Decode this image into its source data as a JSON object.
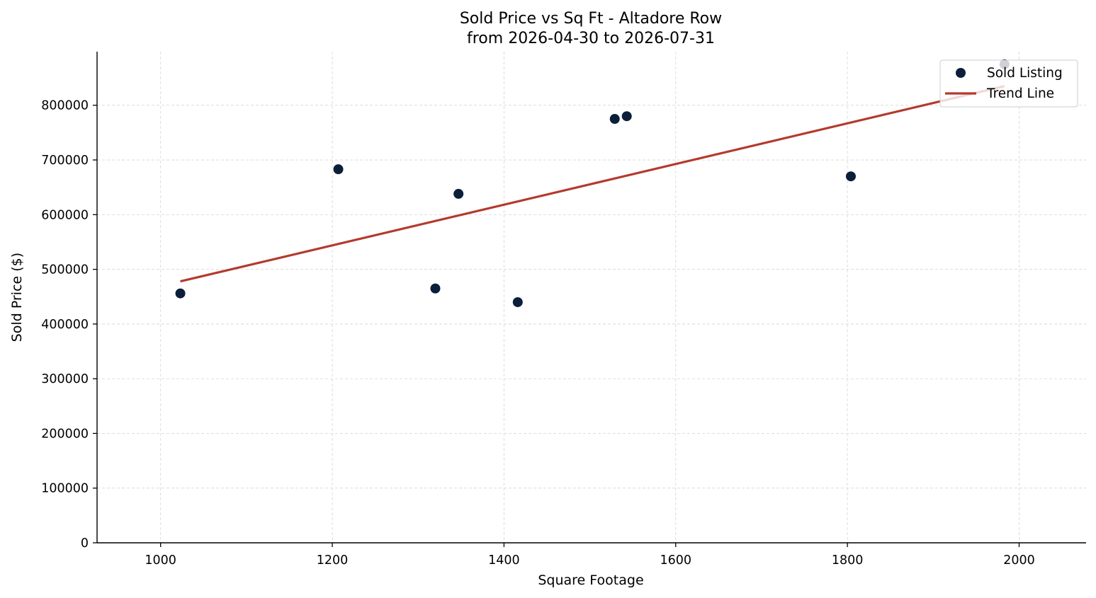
{
  "chart_data": {
    "type": "scatter",
    "title": "Sold Price vs Sq Ft - Altadore Row",
    "subtitle": "from 2026-04-30 to 2026-07-31",
    "xlabel": "Square Footage",
    "ylabel": "Sold Price ($)",
    "xlim": [
      926,
      2078
    ],
    "ylim": [
      0,
      898000
    ],
    "x_ticks": [
      1000,
      1200,
      1400,
      1600,
      1800,
      2000
    ],
    "y_ticks": [
      0,
      100000,
      200000,
      300000,
      400000,
      500000,
      600000,
      700000,
      800000
    ],
    "x_tick_labels": [
      "1000",
      "1200",
      "1400",
      "1600",
      "1800",
      "2000"
    ],
    "y_tick_labels": [
      "0",
      "100000",
      "200000",
      "300000",
      "400000",
      "500000",
      "600000",
      "700000",
      "800000"
    ],
    "grid": true,
    "legend_position": "top-right",
    "series": [
      {
        "name": "Sold Listing",
        "kind": "scatter",
        "color": "#0b1f3a",
        "points": [
          {
            "x": 1023,
            "y": 456000
          },
          {
            "x": 1207,
            "y": 683000
          },
          {
            "x": 1320,
            "y": 465000
          },
          {
            "x": 1347,
            "y": 638000
          },
          {
            "x": 1416,
            "y": 440000
          },
          {
            "x": 1529,
            "y": 775000
          },
          {
            "x": 1543,
            "y": 780000
          },
          {
            "x": 1804,
            "y": 670000
          },
          {
            "x": 1983,
            "y": 875000
          }
        ]
      },
      {
        "name": "Trend Line",
        "kind": "line",
        "color": "#b33a2e",
        "points": [
          {
            "x": 1023,
            "y": 478000
          },
          {
            "x": 1983,
            "y": 835000
          }
        ]
      }
    ]
  }
}
